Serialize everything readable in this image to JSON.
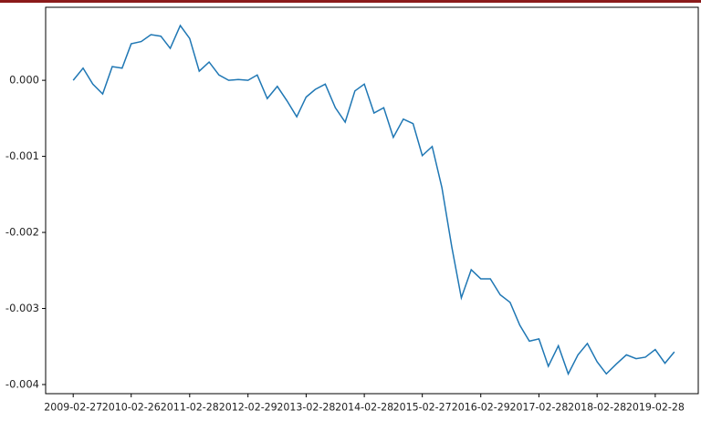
{
  "chart_data": {
    "type": "line",
    "x": [
      "2009-02-27",
      "2009-04-30",
      "2009-06-30",
      "2009-08-31",
      "2009-10-30",
      "2009-12-31",
      "2010-02-26",
      "2010-04-30",
      "2010-06-30",
      "2010-08-31",
      "2010-10-29",
      "2010-12-31",
      "2011-02-28",
      "2011-04-29",
      "2011-06-30",
      "2011-08-31",
      "2011-10-31",
      "2011-12-30",
      "2012-02-29",
      "2012-04-27",
      "2012-06-29",
      "2012-08-31",
      "2012-10-31",
      "2012-12-31",
      "2013-02-28",
      "2013-04-26",
      "2013-06-28",
      "2013-08-30",
      "2013-10-31",
      "2013-12-31",
      "2014-02-28",
      "2014-04-30",
      "2014-06-30",
      "2014-08-29",
      "2014-10-31",
      "2014-12-31",
      "2015-02-27",
      "2015-04-30",
      "2015-06-30",
      "2015-08-31",
      "2015-10-30",
      "2015-12-31",
      "2016-02-29",
      "2016-04-29",
      "2016-06-30",
      "2016-08-31",
      "2016-10-31",
      "2016-12-30",
      "2017-02-28",
      "2017-04-28",
      "2017-06-30",
      "2017-08-31",
      "2017-10-31",
      "2017-12-29",
      "2018-02-28",
      "2018-04-27",
      "2018-06-29",
      "2018-08-31",
      "2018-10-31",
      "2018-12-28",
      "2019-02-28",
      "2019-04-30",
      "2019-06-28"
    ],
    "series": [
      {
        "color": "#1f77b4",
        "values": [
          0.0,
          0.00016,
          -5e-05,
          -0.00018,
          0.00018,
          0.00016,
          0.00048,
          0.00051,
          0.0006,
          0.00058,
          0.00042,
          0.00072,
          0.00055,
          0.00012,
          0.00024,
          7e-05,
          0.0,
          1e-05,
          0.0,
          7e-05,
          -0.00024,
          -8e-05,
          -0.00027,
          -0.00048,
          -0.00022,
          -0.00012,
          -5e-05,
          -0.00036,
          -0.00055,
          -0.00014,
          -5e-05,
          -0.00043,
          -0.00036,
          -0.00075,
          -0.00051,
          -0.00057,
          -0.00099,
          -0.00087,
          -0.00141,
          -0.00219,
          -0.00286,
          -0.00249,
          -0.00261,
          -0.00261,
          -0.00282,
          -0.00292,
          -0.00322,
          -0.00343,
          -0.0034,
          -0.00376,
          -0.00349,
          -0.00386,
          -0.00361,
          -0.00346,
          -0.0037,
          -0.00386,
          -0.00373,
          -0.00361,
          -0.00366,
          -0.00364,
          -0.00354,
          -0.00372,
          -0.00357
        ]
      }
    ],
    "xlim": [
      "2008-09-07",
      "2019-11-25"
    ],
    "xticks": [
      "2009-02-27",
      "2010-02-26",
      "2011-02-28",
      "2012-02-29",
      "2013-02-28",
      "2014-02-28",
      "2015-02-27",
      "2016-02-29",
      "2017-02-28",
      "2018-02-28",
      "2019-02-28"
    ],
    "ylim": [
      -0.00412,
      0.00096
    ],
    "yticks": [
      {
        "value": 0,
        "label": "0.000"
      },
      {
        "value": -0.001,
        "label": "-0.001"
      },
      {
        "value": -0.002,
        "label": "-0.002"
      },
      {
        "value": -0.003,
        "label": "-0.003"
      },
      {
        "value": -0.004,
        "label": "-0.004"
      }
    ]
  }
}
